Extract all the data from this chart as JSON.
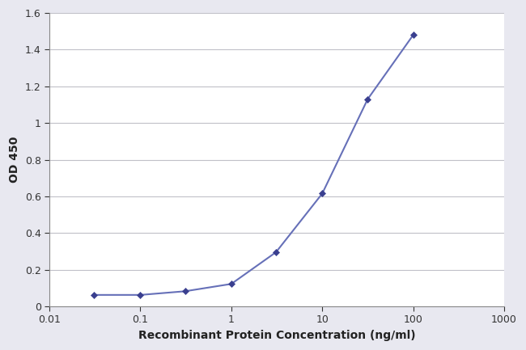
{
  "x": [
    0.031,
    0.1,
    0.31,
    1.0,
    3.1,
    10.0,
    31.6,
    100.0
  ],
  "y": [
    0.062,
    0.062,
    0.082,
    0.122,
    0.295,
    0.615,
    1.13,
    1.48
  ],
  "line_color": "#6670b8",
  "marker_color": "#3a3f8f",
  "marker_style": "D",
  "marker_size": 4,
  "line_width": 1.5,
  "xlabel": "Recombinant Protein Concentration (ng/ml)",
  "ylabel": "OD 450",
  "xlim": [
    0.01,
    1000
  ],
  "ylim": [
    0,
    1.6
  ],
  "yticks": [
    0,
    0.2,
    0.4,
    0.6,
    0.8,
    1.0,
    1.2,
    1.4,
    1.6
  ],
  "xtick_vals": [
    0.01,
    0.1,
    1,
    10,
    100,
    1000
  ],
  "background_color": "#e8e8f0",
  "plot_bg_color": "#ffffff",
  "grid_color": "#c0c0c8",
  "xlabel_fontsize": 10,
  "ylabel_fontsize": 10,
  "tick_fontsize": 9
}
